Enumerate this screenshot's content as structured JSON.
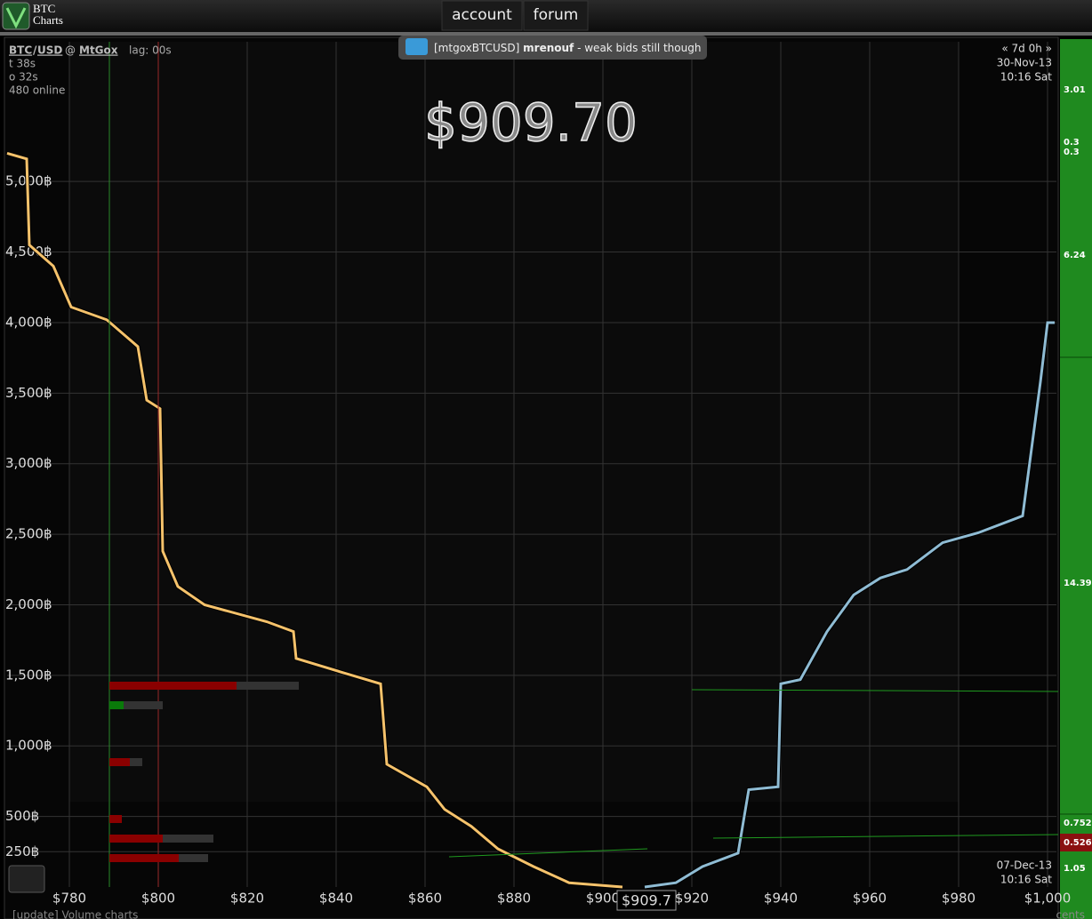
{
  "header": {
    "logo_line1": "BTC",
    "logo_line2": "Charts",
    "nav": [
      "account",
      "forum"
    ]
  },
  "chat": {
    "channel": "[mtgoxBTCUSD]",
    "user": "mrenouf",
    "message": " - weak bids still though"
  },
  "info": {
    "base": "BTC",
    "slash": "/",
    "quote": "USD",
    "at": "@",
    "exchange": "MtGox",
    "lag": "lag: 00s",
    "lines": [
      "t 38s",
      "o 32s",
      "480 online"
    ]
  },
  "range": {
    "span": "« 7d 0h »",
    "start_date": "30-Nov-13",
    "start_time": "10:16 Sat",
    "end_date": "07-Dec-13",
    "end_time": "10:16 Sat"
  },
  "ticker": {
    "price": "$909.70",
    "marker": "$909.7"
  },
  "sidebar": {
    "labels": [
      "3.01",
      "0.3",
      "0.3",
      "6.24",
      "14.39",
      "0.752",
      "0.526",
      "1.05"
    ]
  },
  "footer": {
    "update": "[update] Volume charts",
    "right": "cents"
  },
  "chart_data": {
    "type": "line",
    "xlim": [
      766,
      1002
    ],
    "ylim": [
      0,
      5990
    ],
    "xticks": [
      {
        "value": 780,
        "label": "$780"
      },
      {
        "value": 800,
        "label": "$800"
      },
      {
        "value": 820,
        "label": "$820"
      },
      {
        "value": 840,
        "label": "$840"
      },
      {
        "value": 860,
        "label": "$860"
      },
      {
        "value": 880,
        "label": "$880"
      },
      {
        "value": 900,
        "label": "$900"
      },
      {
        "value": 920,
        "label": "$920"
      },
      {
        "value": 940,
        "label": "$940"
      },
      {
        "value": 960,
        "label": "$960"
      },
      {
        "value": 980,
        "label": "$980"
      },
      {
        "value": 1000,
        "label": "$1,000"
      }
    ],
    "yticks": [
      {
        "value": 250,
        "label": "250฿"
      },
      {
        "value": 500,
        "label": "500฿"
      },
      {
        "value": 1000,
        "label": "1,000฿"
      },
      {
        "value": 1500,
        "label": "1,500฿"
      },
      {
        "value": 2000,
        "label": "2,000฿"
      },
      {
        "value": 2500,
        "label": "2,500฿"
      },
      {
        "value": 3000,
        "label": "3,000฿"
      },
      {
        "value": 3500,
        "label": "3,500฿"
      },
      {
        "value": 4000,
        "label": "4,000฿"
      },
      {
        "value": 4500,
        "label": "4,500฿"
      },
      {
        "value": 5000,
        "label": "5,000฿"
      }
    ],
    "grid": true,
    "series": [
      {
        "color": "#f5c26b",
        "x": [
          766,
          770.4,
          771,
          776.4,
          780.4,
          788.4,
          795.4,
          797.4,
          800.4,
          801,
          804.4,
          810.4,
          824.4,
          830.4,
          831,
          840.4,
          850,
          851.4,
          860.4,
          864.4,
          870.4,
          876.4,
          884.4,
          892.4,
          904.4
        ],
        "values": [
          5200,
          5160,
          4550,
          4400,
          4110,
          4020,
          3830,
          3450,
          3390,
          2380,
          2130,
          2000,
          1880,
          1810,
          1620,
          1530,
          1440,
          870,
          710,
          550,
          430,
          270,
          145,
          30,
          0
        ]
      },
      {
        "color": "#8fbcd4",
        "x": [
          909.4,
          916.4,
          922.4,
          930.4,
          932.8,
          939.4,
          940,
          944.4,
          950.4,
          956.4,
          962.4,
          968.4,
          976.4,
          984.4,
          994.4,
          996,
          998.4,
          1000,
          1001.6
        ],
        "values": [
          0,
          30,
          145,
          240,
          690,
          710,
          1440,
          1470,
          1810,
          2070,
          2190,
          2250,
          2440,
          2510,
          2630,
          3010,
          3580,
          4000,
          4000
        ]
      }
    ]
  }
}
